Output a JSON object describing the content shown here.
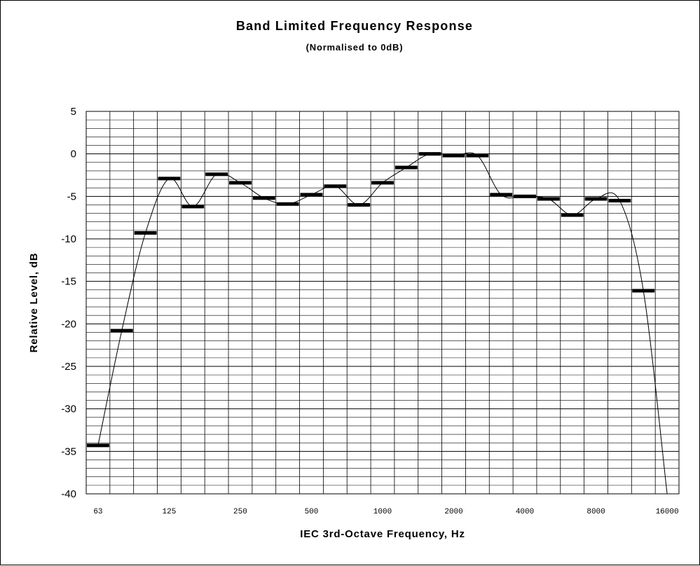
{
  "chart_data": {
    "type": "line",
    "title": "Band Limited Frequency Response",
    "subtitle": "(Normalised to 0dB)",
    "xlabel": "IEC 3rd-Octave Frequency, Hz",
    "ylabel": "Relative Level, dB",
    "ylim": [
      -40,
      5
    ],
    "y_ticks": [
      5,
      0,
      -5,
      -10,
      -15,
      -20,
      -25,
      -30,
      -35,
      -40
    ],
    "y_minor_step": 1,
    "grid": true,
    "x_tick_labels": [
      "63",
      "125",
      "250",
      "500",
      "1000",
      "2000",
      "4000",
      "8000",
      "16000"
    ],
    "bands": [
      "63",
      "80",
      "100",
      "125",
      "160",
      "200",
      "250",
      "315",
      "400",
      "500",
      "630",
      "800",
      "1000",
      "1250",
      "1600",
      "2000",
      "2500",
      "3150",
      "4000",
      "5000",
      "6300",
      "8000",
      "10000",
      "12500",
      "16000"
    ],
    "series": [
      {
        "style": "bar-markers",
        "values": [
          -34.3,
          -20.8,
          -9.3,
          -2.9,
          -6.2,
          -2.4,
          -3.4,
          -5.2,
          -5.9,
          -4.8,
          -3.8,
          -6.0,
          -3.4,
          -1.6,
          0.0,
          -0.2,
          -0.2,
          -4.8,
          -5.0,
          -5.3,
          -7.2,
          -5.3,
          -5.5,
          -16.1,
          null
        ]
      },
      {
        "style": "smooth-line",
        "values": [
          -34.3,
          -20.8,
          -9.3,
          -2.9,
          -6.2,
          -2.4,
          -3.4,
          -5.2,
          -5.9,
          -4.8,
          -3.8,
          -6.0,
          -3.4,
          -1.6,
          0.0,
          -0.2,
          -0.2,
          -4.8,
          -5.0,
          -5.3,
          -7.2,
          -5.3,
          -5.5,
          -16.1,
          -40.0
        ]
      }
    ],
    "colors": {
      "line": "#000000",
      "grid": "#000000",
      "marker": "#000000"
    }
  }
}
